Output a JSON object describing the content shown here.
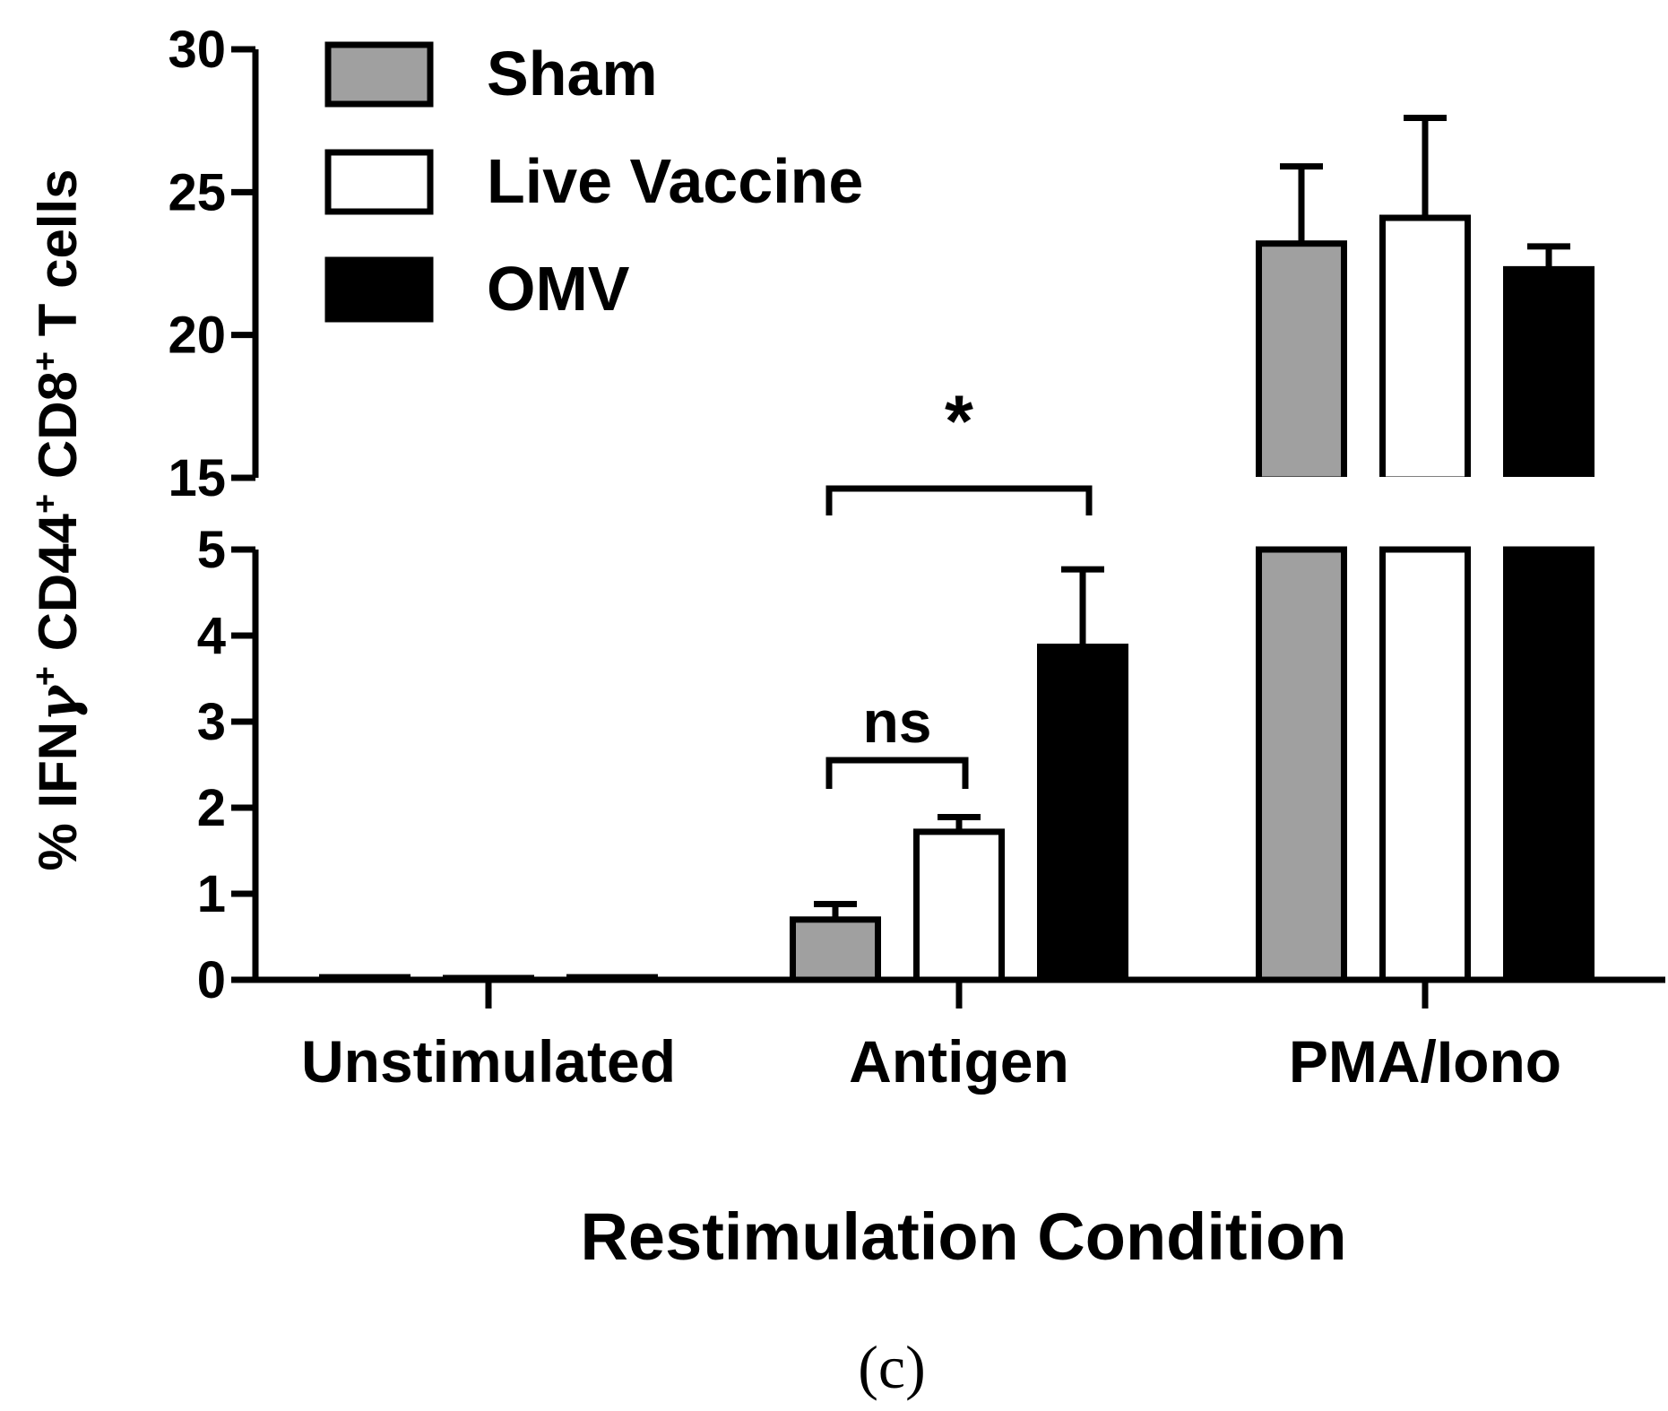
{
  "chart_data": {
    "type": "bar",
    "categories": [
      "Unstimulated",
      "Antigen",
      "PMA/Iono"
    ],
    "series": [
      {
        "name": "Sham",
        "color": "#a0a0a0",
        "values": [
          0.03,
          0.7,
          23.2
        ],
        "errors": [
          0.0,
          0.18,
          2.7
        ]
      },
      {
        "name": "Live Vaccine",
        "color": "#ffffff",
        "values": [
          0.01,
          1.72,
          24.1
        ],
        "errors": [
          0.0,
          0.17,
          3.5
        ]
      },
      {
        "name": "OMV",
        "color": "#000000",
        "values": [
          0.03,
          3.87,
          22.3
        ],
        "errors": [
          0.0,
          0.9,
          0.8
        ]
      }
    ],
    "xlabel": "Restimulation Condition",
    "ylabel": "% IFNγ⁺ CD44⁺ CD8⁺ T cells",
    "y_axis_break": {
      "lower_range": [
        0,
        5
      ],
      "lower_ticks": [
        "0",
        "1",
        "2",
        "3",
        "4",
        "5"
      ],
      "upper_range": [
        15,
        30
      ],
      "upper_ticks": [
        "15",
        "20",
        "25",
        "30"
      ]
    },
    "significance": [
      {
        "category": "Antigen",
        "from_series": "Sham",
        "to_series": "Live Vaccine",
        "label": "ns"
      },
      {
        "category": "Antigen",
        "from_series": "Sham",
        "to_series": "OMV",
        "label": "*"
      }
    ],
    "legend": {
      "position": "top-left",
      "entries": [
        "Sham",
        "Live Vaccine",
        "OMV"
      ]
    },
    "panel_label": "(c)"
  }
}
